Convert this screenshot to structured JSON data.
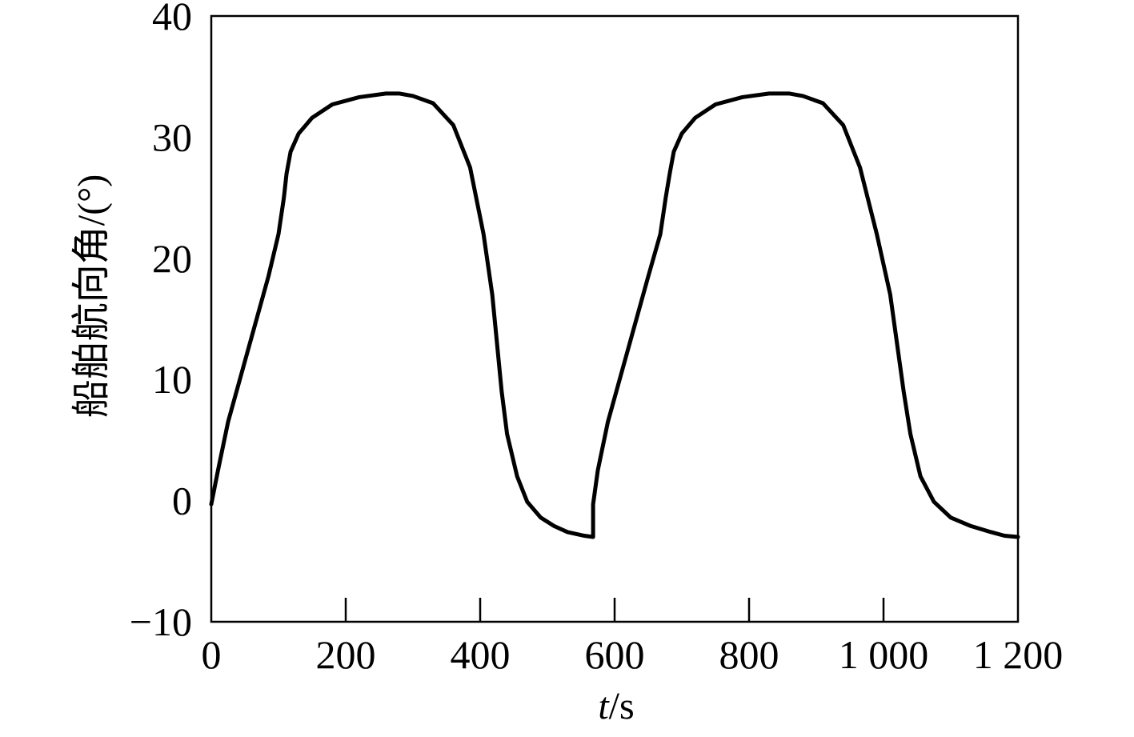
{
  "chart_data": {
    "type": "line",
    "title": "",
    "xlabel_italic": "t",
    "xlabel_unit": "/s",
    "ylabel": "船舶航向角/(°)",
    "xlim": [
      0,
      1200
    ],
    "ylim": [
      -10,
      40
    ],
    "x_ticks": [
      0,
      200,
      400,
      600,
      800,
      1000,
      1200
    ],
    "x_tick_labels": [
      "0",
      "200",
      "400",
      "600",
      "800",
      "1 000",
      "1 200"
    ],
    "y_ticks": [
      -10,
      0,
      10,
      20,
      30,
      40
    ],
    "y_tick_labels": [
      "−10",
      "0",
      "10",
      "20",
      "30",
      "40"
    ],
    "grid": false,
    "line_color": "#000000",
    "series": [
      {
        "x": [
          0,
          10,
          25,
          45,
          65,
          85,
          100,
          108,
          112,
          118,
          130,
          150,
          180,
          220,
          260,
          280,
          300,
          330,
          360,
          385,
          405,
          418,
          425,
          432,
          440,
          455,
          470,
          490,
          510,
          530,
          555,
          568,
          568,
          575,
          590,
          610,
          630,
          650,
          668,
          676,
          682,
          688,
          700,
          720,
          750,
          790,
          830,
          860,
          880,
          910,
          940,
          965,
          990,
          1010,
          1020,
          1030,
          1040,
          1055,
          1075,
          1100,
          1130,
          1160,
          1180,
          1200
        ],
        "y": [
          -0.3,
          2.5,
          6.5,
          10.5,
          14.5,
          18.5,
          22.0,
          25.0,
          27.0,
          28.8,
          30.3,
          31.6,
          32.7,
          33.3,
          33.6,
          33.6,
          33.4,
          32.8,
          31.0,
          27.5,
          22.0,
          17.0,
          13.0,
          9.0,
          5.5,
          2.0,
          -0.1,
          -1.4,
          -2.1,
          -2.6,
          -2.9,
          -3.0,
          -0.3,
          2.5,
          6.5,
          10.5,
          14.5,
          18.5,
          22.0,
          25.0,
          27.0,
          28.8,
          30.3,
          31.6,
          32.7,
          33.3,
          33.6,
          33.6,
          33.4,
          32.8,
          31.0,
          27.5,
          22.0,
          17.0,
          13.0,
          9.0,
          5.5,
          2.0,
          -0.1,
          -1.4,
          -2.1,
          -2.6,
          -2.9,
          -3.0
        ]
      }
    ]
  }
}
